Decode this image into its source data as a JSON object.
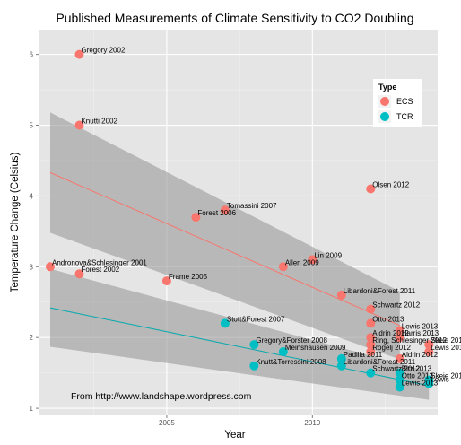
{
  "chart_data": {
    "type": "scatter",
    "title": "Published Measurements of Climate Sensitivity to CO2 Doubling",
    "xlabel": "Year",
    "ylabel": "Temperature Change (Celsius)",
    "xlim": [
      2000.6,
      2014.3
    ],
    "ylim": [
      0.9,
      6.35
    ],
    "x_ticks": [
      2005,
      2010
    ],
    "y_ticks": [
      1,
      2,
      3,
      4,
      5,
      6
    ],
    "grid": true,
    "legend": {
      "title": "Type",
      "placement": "right",
      "entries": [
        {
          "name": "ECS",
          "color": "#F8766D"
        },
        {
          "name": "TCR",
          "color": "#00BFC4"
        }
      ]
    },
    "annotation": "From http://www.landshape.wordpress.com",
    "colors": {
      "ECS": "#F8766D",
      "TCR": "#00BFC4",
      "ECS_line": "#F8766D",
      "TCR_line": "#00A9AE",
      "band": "#999999",
      "panel": "#E5E5E5",
      "grid": "#FFFFFF"
    },
    "series": [
      {
        "name": "ECS",
        "points": [
          {
            "x": 2002,
            "y": 6.0,
            "label": "Gregory 2002"
          },
          {
            "x": 2002,
            "y": 5.0,
            "label": "Knutti 2002"
          },
          {
            "x": 2001,
            "y": 3.0,
            "label": "Andronova&Schlesinger 2001"
          },
          {
            "x": 2002,
            "y": 2.9,
            "label": "Forest 2002"
          },
          {
            "x": 2005,
            "y": 2.8,
            "label": "Frame 2005"
          },
          {
            "x": 2006,
            "y": 3.7,
            "label": "Forest 2006"
          },
          {
            "x": 2007,
            "y": 3.8,
            "label": "Tomassini 2007"
          },
          {
            "x": 2009,
            "y": 3.0,
            "label": "Allen 2009"
          },
          {
            "x": 2010,
            "y": 3.1,
            "label": "Lin 2009"
          },
          {
            "x": 2011,
            "y": 2.6,
            "label": "Libardoni&Forest 2011"
          },
          {
            "x": 2012,
            "y": 4.1,
            "label": "Olsen 2012"
          },
          {
            "x": 2012,
            "y": 2.4,
            "label": "Schwartz 2012"
          },
          {
            "x": 2012,
            "y": 2.2,
            "label": "Otto 2013"
          },
          {
            "x": 2013,
            "y": 2.1,
            "label": "Lewis 2013"
          },
          {
            "x": 2012,
            "y": 2.0,
            "label": "Aldrin 2012"
          },
          {
            "x": 2013,
            "y": 2.0,
            "label": "Harris 2013"
          },
          {
            "x": 2012,
            "y": 1.9,
            "label": "Ring, Schlesinger 2012"
          },
          {
            "x": 2014,
            "y": 1.9,
            "label": "Skeie 2013"
          },
          {
            "x": 2014,
            "y": 1.8,
            "label": "Lewis 2013"
          },
          {
            "x": 2012,
            "y": 1.8,
            "label": "Rogelj 2012"
          },
          {
            "x": 2013,
            "y": 1.7,
            "label": "Aldrin 2012"
          }
        ]
      },
      {
        "name": "TCR",
        "points": [
          {
            "x": 2007,
            "y": 2.2,
            "label": "Stott&Forest 2007"
          },
          {
            "x": 2008,
            "y": 1.9,
            "label": "Gregory&Forster 2008"
          },
          {
            "x": 2009,
            "y": 1.8,
            "label": "Meinshausen 2009"
          },
          {
            "x": 2008,
            "y": 1.6,
            "label": "Knutt&Torressini 2008"
          },
          {
            "x": 2011,
            "y": 1.7,
            "label": "Padilla 2011"
          },
          {
            "x": 2011,
            "y": 1.6,
            "label": "Libardoni&Forest 2011"
          },
          {
            "x": 2012,
            "y": 1.5,
            "label": "Schwartz 2012"
          },
          {
            "x": 2013,
            "y": 1.5,
            "label": "Bitz 2013"
          },
          {
            "x": 2013,
            "y": 1.4,
            "label": "Otto 2013"
          },
          {
            "x": 2014,
            "y": 1.4,
            "label": "Skeie 2013"
          },
          {
            "x": 2014,
            "y": 1.35,
            "label": "Lewis"
          },
          {
            "x": 2013,
            "y": 1.3,
            "label": "Lewis 2013"
          }
        ]
      }
    ],
    "fits": [
      {
        "series": "ECS",
        "x": [
          2001,
          2013
        ],
        "y": [
          4.33,
          2.17
        ],
        "band_upper": [
          5.18,
          2.65
        ],
        "band_lower": [
          3.48,
          1.69
        ]
      },
      {
        "series": "TCR",
        "x": [
          2001,
          2014
        ],
        "y": [
          2.42,
          1.32
        ],
        "band_upper": [
          2.97,
          1.52
        ],
        "band_lower": [
          1.87,
          1.12
        ]
      }
    ]
  }
}
